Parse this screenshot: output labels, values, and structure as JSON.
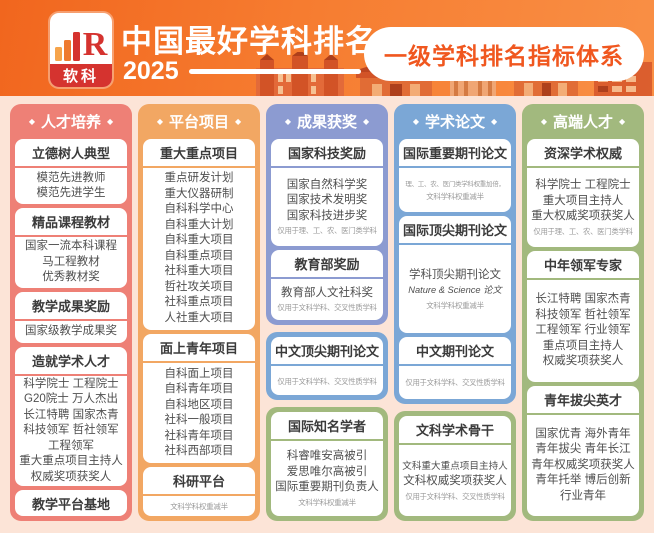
{
  "ui": {
    "decor": "◆",
    "page_bg": "#fce4d7",
    "banner_orange": "#f4772f",
    "brand_red": "#d5332f",
    "badge_text_color": "#f0571f"
  },
  "header": {
    "logo_brand": "软科",
    "logo_letter": "R",
    "title": "中国最好学科排名",
    "year": "2025",
    "badge": "一级学科排名指标体系"
  },
  "columns": [
    {
      "blocks": [
        {
          "id": "talent-cultivation",
          "header": "人才培养",
          "color": "#ee8076",
          "sections": [
            {
              "title": "立德树人典型",
              "items": [
                "模范先进教师",
                "模范先进学生"
              ]
            },
            {
              "title": "精品课程教材",
              "items": [
                "国家一流本科课程",
                "马工程教材",
                "优秀教材奖"
              ]
            },
            {
              "title": "教学成果奖励",
              "items": [
                "国家级教学成果奖"
              ]
            },
            {
              "title": "造就学术人才",
              "items": [
                "科学院士 工程院士",
                "G20院士 万人杰出",
                "长江特聘 国家杰青",
                "科技领军 哲社领军",
                "工程领军",
                "重大重点项目主持人",
                "权威奖项获奖人"
              ]
            },
            {
              "title": "教学平台基地"
            }
          ]
        }
      ]
    },
    {
      "blocks": [
        {
          "id": "platform-projects",
          "header": "平台项目",
          "color": "#f2a763",
          "sections": [
            {
              "title": "重大重点项目",
              "items": [
                "重点研发计划",
                "重大仪器研制",
                "自科科学中心",
                "自科重大计划",
                "自科重大项目",
                "自科重点项目",
                "社科重大项目",
                "哲社攻关项目",
                "社科重点项目",
                "人社重大项目"
              ]
            },
            {
              "title": "面上青年项目",
              "items": [
                "自科面上项目",
                "自科青年项目",
                "自科地区项目",
                "社科一般项目",
                "社科青年项目",
                "社科西部项目"
              ]
            },
            {
              "title": "科研平台",
              "note": "文科学科权重减半"
            }
          ]
        }
      ]
    },
    {
      "blocks": [
        {
          "id": "achievement-awards",
          "header": "成果获奖",
          "color": "#8c9bd1",
          "sections": [
            {
              "title": "国家科技奖励",
              "items": [
                "国家自然科学奖",
                "国家技术发明奖",
                "国家科技进步奖"
              ],
              "note": "仅用于理、工、农、医门类学科"
            },
            {
              "title": "教育部奖励",
              "items": [
                "教育部人文社科奖"
              ],
              "note": "仅用于文科学科、交叉性质学科"
            }
          ]
        },
        {
          "id": "chinese-top-journal-papers",
          "color": "#7ba7d6",
          "sections": [
            {
              "title": "中文顶尖期刊论文",
              "note": "仅用于文科学科、交叉性质学科"
            }
          ]
        },
        {
          "id": "international-renowned-scholars",
          "color": "#a2b97e",
          "sections": [
            {
              "title": "国际知名学者",
              "items": [
                "科睿唯安高被引",
                "爱思唯尔高被引",
                "国际重要期刊负责人"
              ],
              "note": "文科学科权重减半"
            }
          ]
        }
      ]
    },
    {
      "blocks": [
        {
          "id": "academic-papers",
          "header": "学术论文",
          "color": "#7ba7d6",
          "sections": [
            {
              "title": "国际重要期刊论文",
              "note": [
                "理、工、农、医门类学科权重加倍，",
                "文科学科权重减半"
              ]
            },
            {
              "title": "国际顶尖期刊论文",
              "items": [
                "学科顶尖期刊论文",
                {
                  "text": "Nature & Science 论文",
                  "italic": true
                }
              ],
              "note": "文科学科权重减半"
            },
            {
              "title": "中文期刊论文",
              "note": "仅用于文科学科、交叉性质学科"
            }
          ]
        },
        {
          "id": "humanities-academic-backbone",
          "color": "#a2b97e",
          "sections": [
            {
              "title": "文科学术骨干",
              "items": [
                "文科重大重点项目主持人",
                "文科权威奖项获奖人"
              ],
              "note": "仅用于文科学科、交叉性质学科"
            }
          ]
        }
      ]
    },
    {
      "blocks": [
        {
          "id": "high-end-talent",
          "header": "高端人才",
          "color": "#a2b97e",
          "sections": [
            {
              "title": "资深学术权威",
              "items": [
                "科学院士 工程院士",
                "重大项目主持人",
                "重大权威奖项获奖人"
              ],
              "note": "仅用于理、工、农、医门类学科"
            },
            {
              "title": "中年领军专家",
              "items": [
                "长江特聘 国家杰青",
                "科技领军 哲社领军",
                "工程领军 行业领军",
                "重点项目主持人",
                "权威奖项获奖人"
              ]
            },
            {
              "title": "青年拔尖英才",
              "items": [
                "国家优青 海外青年",
                "青年拔尖 青年长江",
                "青年权威奖项获奖人",
                "青年托举 博后创新",
                "行业青年"
              ]
            }
          ]
        }
      ]
    }
  ]
}
